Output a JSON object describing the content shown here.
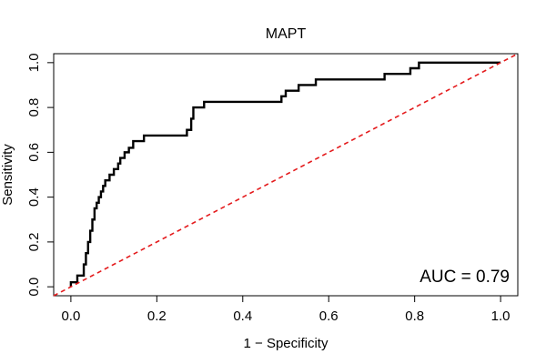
{
  "chart_data": {
    "type": "line",
    "title": "MAPT",
    "xlabel": "1 − Specificity",
    "ylabel": "Sensitivity",
    "xlim": [
      -0.04,
      1.04
    ],
    "ylim": [
      -0.04,
      1.04
    ],
    "x_ticks": [
      "0.0",
      "0.2",
      "0.4",
      "0.6",
      "0.8",
      "1.0"
    ],
    "y_ticks": [
      "0.0",
      "0.2",
      "0.4",
      "0.6",
      "0.8",
      "1.0"
    ],
    "x_tick_values": [
      0,
      0.2,
      0.4,
      0.6,
      0.8,
      1.0
    ],
    "y_tick_values": [
      0,
      0.2,
      0.4,
      0.6,
      0.8,
      1.0
    ],
    "annotation": "AUC = 0.79",
    "grid": false,
    "series": [
      {
        "color": "#000000",
        "style": "solid-step",
        "x": [
          0.0,
          0.0,
          0.015,
          0.015,
          0.03,
          0.03,
          0.035,
          0.035,
          0.04,
          0.04,
          0.045,
          0.045,
          0.05,
          0.05,
          0.055,
          0.055,
          0.06,
          0.06,
          0.065,
          0.065,
          0.07,
          0.07,
          0.075,
          0.075,
          0.08,
          0.08,
          0.09,
          0.09,
          0.1,
          0.1,
          0.11,
          0.11,
          0.115,
          0.115,
          0.125,
          0.125,
          0.135,
          0.135,
          0.145,
          0.145,
          0.17,
          0.17,
          0.22,
          0.22,
          0.27,
          0.27,
          0.28,
          0.28,
          0.285,
          0.285,
          0.31,
          0.31,
          0.49,
          0.49,
          0.5,
          0.5,
          0.53,
          0.53,
          0.57,
          0.57,
          0.73,
          0.73,
          0.79,
          0.79,
          0.81,
          0.81,
          1.0
        ],
        "y": [
          0.0,
          0.02,
          0.02,
          0.05,
          0.05,
          0.1,
          0.1,
          0.15,
          0.15,
          0.2,
          0.2,
          0.25,
          0.25,
          0.3,
          0.3,
          0.35,
          0.35,
          0.375,
          0.375,
          0.4,
          0.4,
          0.425,
          0.425,
          0.45,
          0.45,
          0.475,
          0.475,
          0.5,
          0.5,
          0.525,
          0.525,
          0.55,
          0.55,
          0.575,
          0.575,
          0.6,
          0.6,
          0.62,
          0.62,
          0.65,
          0.65,
          0.675,
          0.675,
          0.675,
          0.675,
          0.7,
          0.7,
          0.75,
          0.75,
          0.8,
          0.8,
          0.825,
          0.825,
          0.85,
          0.85,
          0.875,
          0.875,
          0.9,
          0.9,
          0.925,
          0.925,
          0.95,
          0.95,
          0.975,
          0.975,
          1.0,
          1.0
        ]
      },
      {
        "color": "#e41a1c",
        "style": "dashed",
        "x": [
          -0.04,
          1.04
        ],
        "y": [
          -0.04,
          1.04
        ]
      }
    ]
  }
}
